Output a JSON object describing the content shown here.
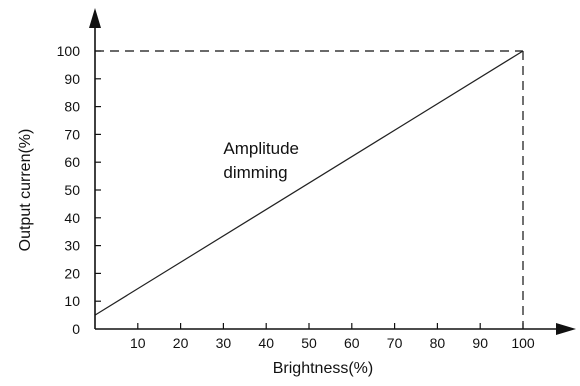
{
  "chart_data": {
    "type": "line",
    "title": "",
    "xlabel": "Brightness(%)",
    "ylabel": "Output curren(%)",
    "xlim": [
      0,
      100
    ],
    "ylim": [
      0,
      100
    ],
    "x_ticks": [
      10,
      20,
      30,
      40,
      50,
      60,
      70,
      80,
      90,
      100
    ],
    "y_ticks": [
      0,
      10,
      20,
      30,
      40,
      50,
      60,
      70,
      80,
      90,
      100
    ],
    "grid": false,
    "series": [
      {
        "x": [
          0,
          100
        ],
        "y": [
          5,
          100
        ]
      }
    ],
    "reference_lines": [
      {
        "orientation": "horizontal",
        "value": 100,
        "style": "dashed"
      },
      {
        "orientation": "vertical",
        "value": 100,
        "style": "dashed"
      }
    ],
    "annotations": [
      {
        "lines": [
          "Amplitude",
          "dimming"
        ],
        "x": 30,
        "y": 63
      }
    ],
    "colors": {
      "line": "#222222",
      "axis": "#111111",
      "text": "#111111"
    }
  }
}
